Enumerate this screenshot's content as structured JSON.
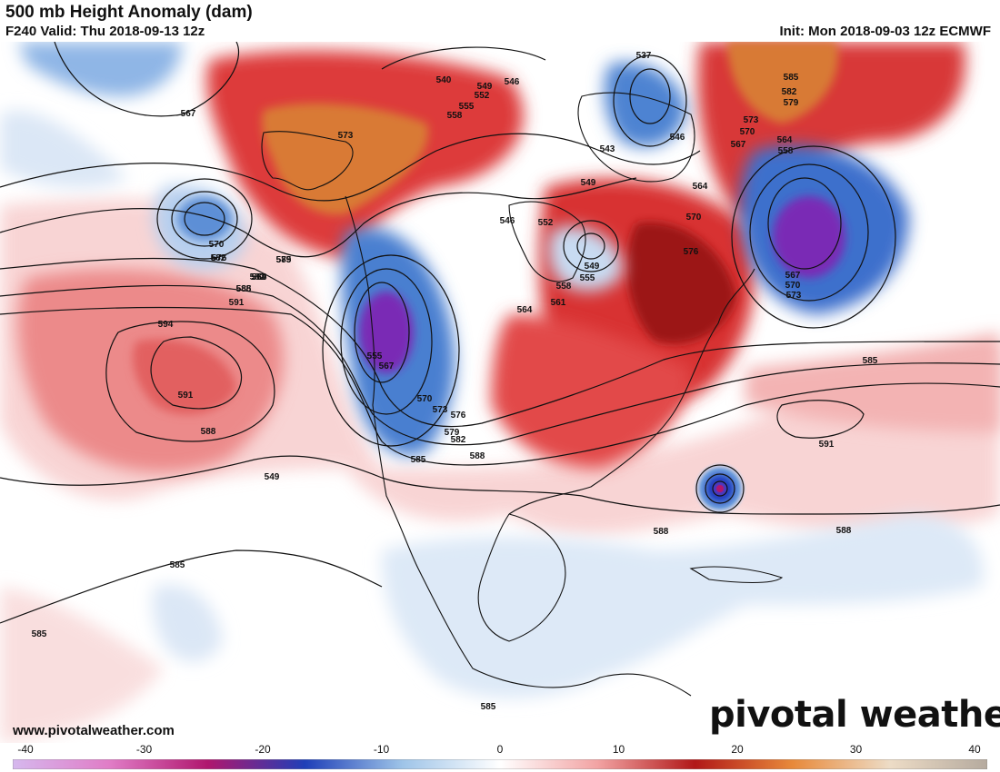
{
  "title": "500 mb Height Anomaly (dam)",
  "valid": "F240 Valid: Thu 2018-09-13 12z",
  "init": "Init: Mon 2018-09-03 12z ECMWF",
  "website": "www.pivotalweather.com",
  "brand": "pivotal weather",
  "colorbar": {
    "ticks": [
      "-40",
      "-30",
      "-20",
      "-10",
      "0",
      "10",
      "20",
      "30",
      "40"
    ],
    "stops": [
      "#d6b8ee",
      "#e07cc6",
      "#b0176e",
      "#1f3fb8",
      "#9ec4e8",
      "#ffffff",
      "#f2a3a3",
      "#b11818",
      "#e8893a",
      "#eddcc6",
      "#b5aa9e"
    ]
  },
  "contour_labels": [
    "540",
    "549",
    "546",
    "552",
    "555",
    "558",
    "537",
    "546",
    "543",
    "585",
    "582",
    "579",
    "573",
    "570",
    "567",
    "564",
    "558",
    "567",
    "570",
    "573",
    "549",
    "564",
    "546",
    "552",
    "570",
    "576",
    "549",
    "555",
    "558",
    "561",
    "564",
    "567",
    "573",
    "579",
    "582",
    "585",
    "588",
    "564",
    "570",
    "576",
    "579",
    "582",
    "585",
    "591",
    "594",
    "591",
    "588",
    "549",
    "555",
    "567",
    "570",
    "573",
    "576",
    "579",
    "582",
    "585",
    "588",
    "591",
    "588",
    "588",
    "585",
    "585",
    "585",
    "585"
  ],
  "colors": {
    "strong_positive": "#a5141b",
    "positive": "#e24848",
    "weak_positive": "#f6c4c4",
    "strongest_positive": "#d87a33",
    "strong_negative": "#1f3fb8",
    "negative": "#5c8fd6",
    "weak_negative": "#cfe0f4",
    "extreme_negative": "#7a2ab5"
  }
}
